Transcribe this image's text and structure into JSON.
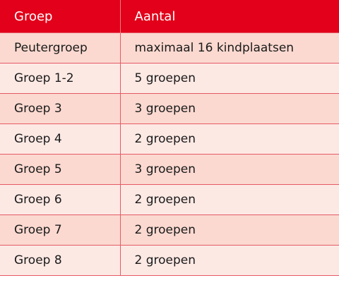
{
  "table": {
    "headers": [
      "Groep",
      "Aantal"
    ],
    "rows": [
      [
        "Peutergroep",
        "maximaal 16 kindplaatsen"
      ],
      [
        "Groep 1-2",
        "5 groepen"
      ],
      [
        "Groep 3",
        "3 groepen"
      ],
      [
        "Groep 4",
        "2 groepen"
      ],
      [
        "Groep 5",
        "3 groepen"
      ],
      [
        "Groep 6",
        "2 groepen"
      ],
      [
        "Groep 7",
        "2 groepen"
      ],
      [
        "Groep 8",
        "2 groepen"
      ]
    ]
  },
  "colors": {
    "header_bg": "#e2001a",
    "row_odd": "#fbd9d0",
    "row_even": "#fde9e4",
    "border": "#e55a66"
  }
}
